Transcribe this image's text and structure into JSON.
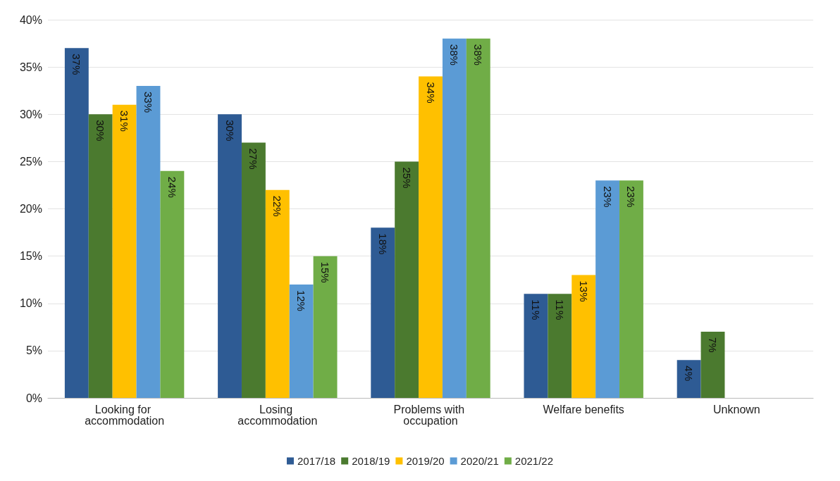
{
  "chart_data": {
    "type": "bar",
    "categories": [
      "Looking for accommodation",
      "Losing accommodation",
      "Problems with occupation",
      "Welfare benefits",
      "Unknown"
    ],
    "series": [
      {
        "name": "2017/18",
        "color": "#2e5b94",
        "values": [
          37,
          30,
          18,
          11,
          4
        ],
        "value_labels": [
          "37%",
          "30%",
          "18%",
          "11%",
          "4%"
        ]
      },
      {
        "name": "2018/19",
        "color": "#4b7a2f",
        "values": [
          30,
          27,
          25,
          11,
          7
        ],
        "value_labels": [
          "30%",
          "27%",
          "25%",
          "11%",
          "7%"
        ]
      },
      {
        "name": "2019/20",
        "color": "#ffc000",
        "values": [
          31,
          22,
          34,
          13,
          0
        ],
        "value_labels": [
          "31%",
          "22%",
          "34%",
          "13%",
          null
        ]
      },
      {
        "name": "2020/21",
        "color": "#5b9bd5",
        "values": [
          33,
          12,
          38,
          23,
          0
        ],
        "value_labels": [
          "33%",
          "12%",
          "38%",
          "23%",
          null
        ]
      },
      {
        "name": "2021/22",
        "color": "#70ad47",
        "values": [
          24,
          15,
          38,
          23,
          0
        ],
        "value_labels": [
          "24%",
          "15%",
          "38%",
          "23%",
          null
        ]
      }
    ],
    "ylim": [
      0,
      40
    ],
    "yticks": [
      {
        "value": 0,
        "label": "0%"
      },
      {
        "value": 5,
        "label": "5%"
      },
      {
        "value": 10,
        "label": "10%"
      },
      {
        "value": 15,
        "label": "15%"
      },
      {
        "value": 20,
        "label": "20%"
      },
      {
        "value": 25,
        "label": "25%"
      },
      {
        "value": 30,
        "label": "30%"
      },
      {
        "value": 35,
        "label": "35%"
      },
      {
        "value": 40,
        "label": "40%"
      }
    ],
    "grid": "y",
    "legend": "bottom"
  }
}
